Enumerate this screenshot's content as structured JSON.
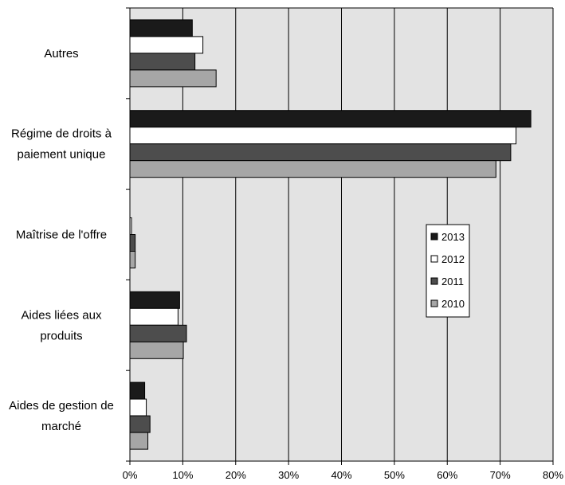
{
  "chart_data": {
    "type": "bar",
    "orientation": "horizontal",
    "categories": [
      [
        "Autres"
      ],
      [
        "Régime de droits à",
        "paiement unique"
      ],
      [
        "Maîtrise de l'offre"
      ],
      [
        "Aides liées aux",
        "produits"
      ],
      [
        "Aides de gestion de",
        "marché"
      ]
    ],
    "series": [
      {
        "name": "2013",
        "color": "#1a1a1a",
        "values": [
          11.8,
          75.8,
          0.0,
          9.4,
          2.8
        ]
      },
      {
        "name": "2012",
        "color": "#ffffff",
        "values": [
          13.8,
          73.0,
          0.3,
          9.1,
          3.1
        ]
      },
      {
        "name": "2011",
        "color": "#4d4d4d",
        "values": [
          12.3,
          72.0,
          1.0,
          10.7,
          3.8
        ]
      },
      {
        "name": "2010",
        "color": "#a6a6a6",
        "values": [
          16.3,
          69.2,
          1.0,
          10.1,
          3.4
        ]
      }
    ],
    "xticks": [
      "0%",
      "10%",
      "20%",
      "30%",
      "40%",
      "50%",
      "60%",
      "70%",
      "80%"
    ],
    "xlim": [
      0,
      80
    ],
    "grid": true,
    "legend_position": "right-center",
    "plot_background": "#e3e3e3"
  }
}
